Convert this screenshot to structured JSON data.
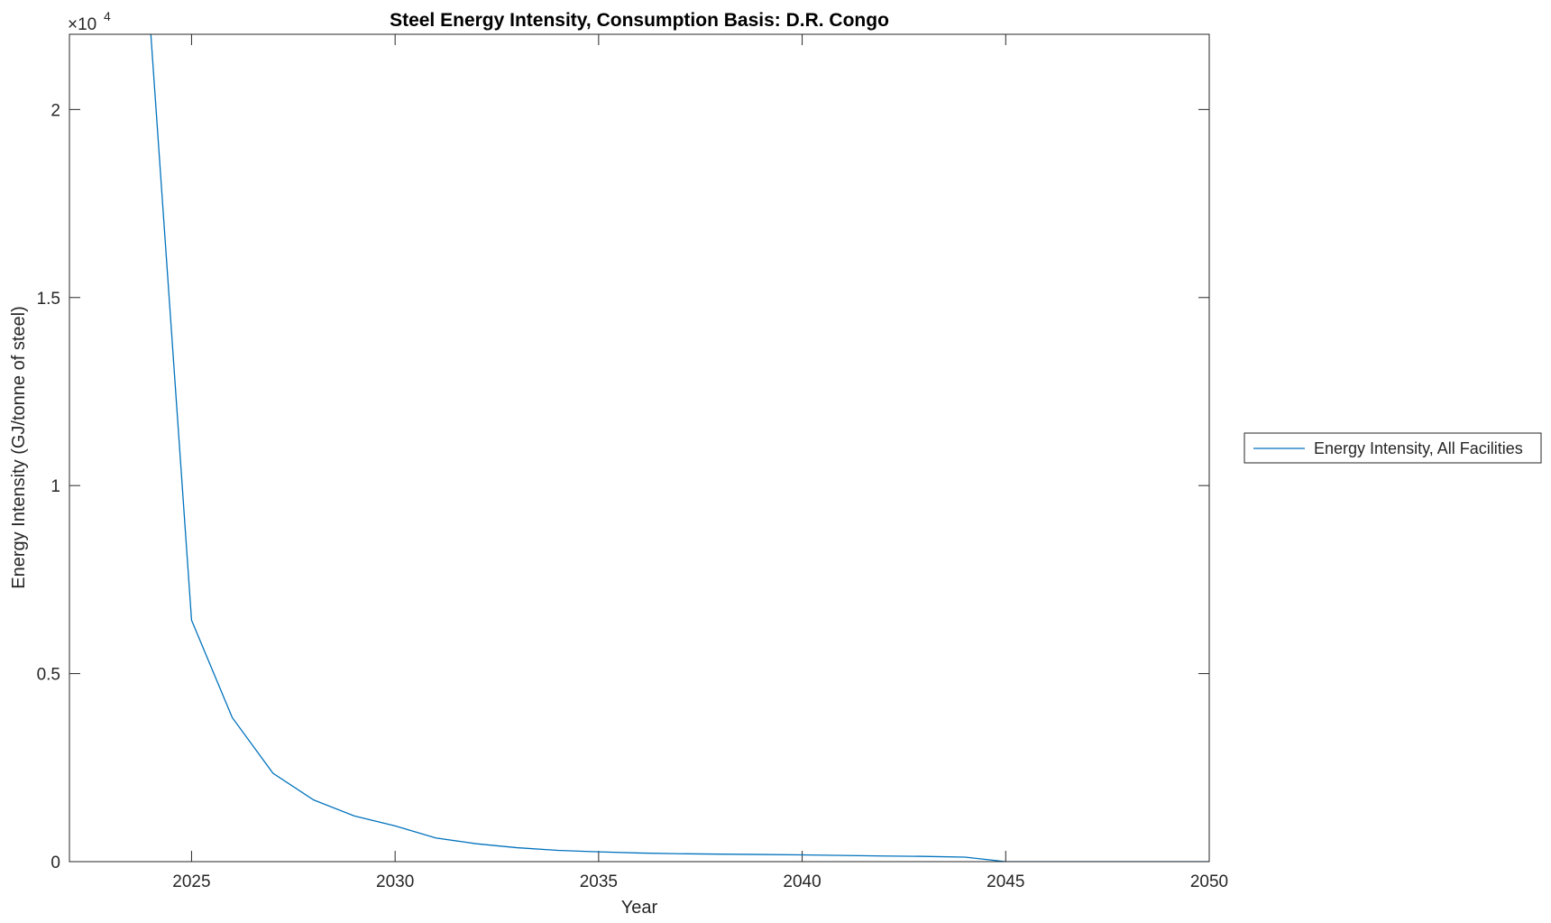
{
  "chart_data": {
    "type": "line",
    "title": "Steel Energy Intensity, Consumption Basis: D.R. Congo",
    "xlabel": "Year",
    "ylabel": "Energy Intensity (GJ/tonne of steel)",
    "y_exponent_label": "×10",
    "y_exponent": "4",
    "xlim": [
      2022,
      2050
    ],
    "ylim": [
      0,
      22000
    ],
    "xticks": [
      2025,
      2030,
      2035,
      2040,
      2045,
      2050
    ],
    "xtick_labels": [
      "2025",
      "2030",
      "2035",
      "2040",
      "2045",
      "2050"
    ],
    "yticks": [
      0,
      5000,
      10000,
      15000,
      20000
    ],
    "ytick_labels": [
      "0",
      "0.5",
      "1",
      "1.5",
      "2"
    ],
    "grid": false,
    "legend_placement": "outside-right",
    "series": [
      {
        "name": "Energy Intensity, All Facilities",
        "color": "#0072BD",
        "x": [
          2024,
          2025,
          2026,
          2027,
          2028,
          2029,
          2030,
          2031,
          2032,
          2033,
          2034,
          2035,
          2036,
          2037,
          2038,
          2039,
          2040,
          2041,
          2042,
          2043,
          2044,
          2045,
          2046,
          2047,
          2048,
          2049,
          2050
        ],
        "y": [
          22000,
          6420,
          3830,
          2350,
          1640,
          1215,
          950,
          630,
          475,
          370,
          300,
          260,
          230,
          210,
          200,
          190,
          180,
          165,
          150,
          140,
          120,
          0,
          0,
          0,
          0,
          0,
          0
        ]
      }
    ]
  }
}
